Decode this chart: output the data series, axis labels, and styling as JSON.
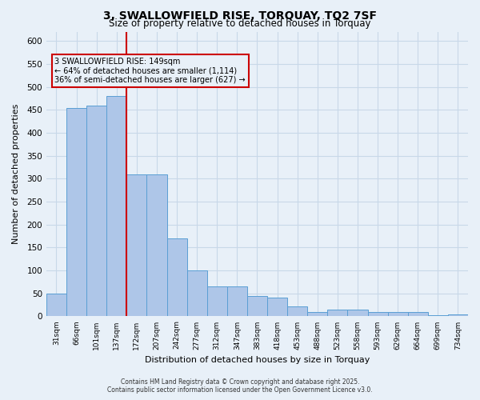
{
  "title": "3, SWALLOWFIELD RISE, TORQUAY, TQ2 7SF",
  "subtitle": "Size of property relative to detached houses in Torquay",
  "xlabel": "Distribution of detached houses by size in Torquay",
  "ylabel": "Number of detached properties",
  "footer_line1": "Contains HM Land Registry data © Crown copyright and database right 2025.",
  "footer_line2": "Contains public sector information licensed under the Open Government Licence v3.0.",
  "categories": [
    "31sqm",
    "66sqm",
    "101sqm",
    "137sqm",
    "172sqm",
    "207sqm",
    "242sqm",
    "277sqm",
    "312sqm",
    "347sqm",
    "383sqm",
    "418sqm",
    "453sqm",
    "488sqm",
    "523sqm",
    "558sqm",
    "593sqm",
    "629sqm",
    "664sqm",
    "699sqm",
    "734sqm"
  ],
  "values": [
    50,
    455,
    460,
    480,
    310,
    310,
    170,
    100,
    65,
    65,
    45,
    40,
    22,
    10,
    15,
    15,
    10,
    10,
    10,
    2,
    5
  ],
  "bar_color": "#aec6e8",
  "bar_edge_color": "#5a9fd4",
  "grid_color": "#c8d8e8",
  "bg_color": "#e8f0f8",
  "vline_x_index": 3,
  "vline_color": "#cc0000",
  "annotation_line1": "3 SWALLOWFIELD RISE: 149sqm",
  "annotation_line2": "← 64% of detached houses are smaller (1,114)",
  "annotation_line3": "36% of semi-detached houses are larger (627) →",
  "annotation_box_color": "#cc0000",
  "ylim": [
    0,
    620
  ],
  "yticks": [
    0,
    50,
    100,
    150,
    200,
    250,
    300,
    350,
    400,
    450,
    500,
    550,
    600
  ]
}
